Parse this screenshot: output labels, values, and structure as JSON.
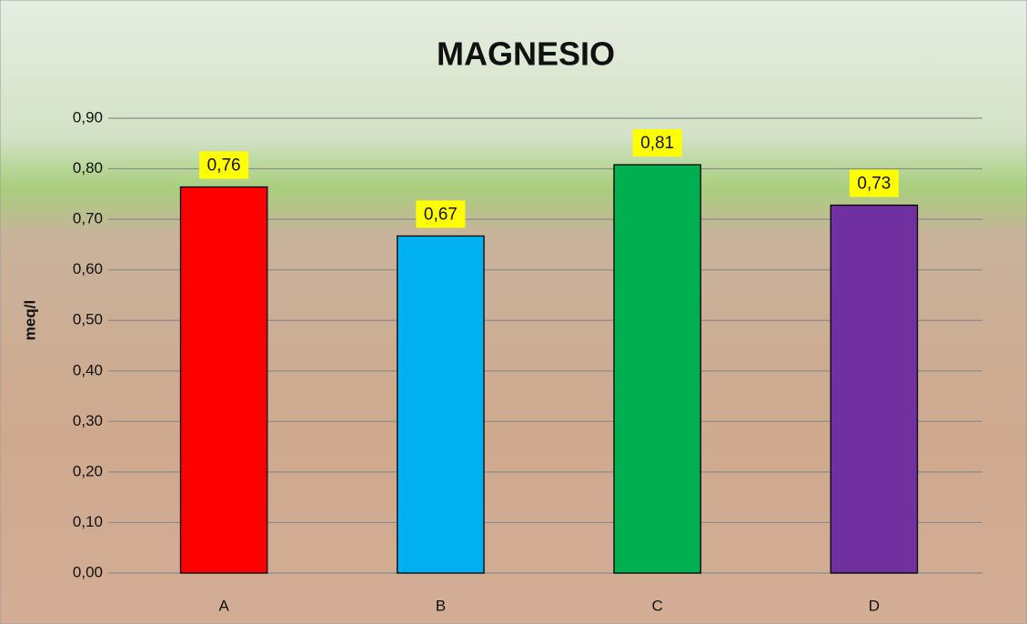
{
  "chart_data": {
    "type": "bar",
    "title": "MAGNESIO",
    "y_label": "meq/l",
    "categories": [
      "A",
      "B",
      "C",
      "D"
    ],
    "values": [
      0.764,
      0.667,
      0.808,
      0.728
    ],
    "value_labels": [
      "0,76",
      "0,67",
      "0,81",
      "0,73"
    ],
    "colors": [
      "#ff0000",
      "#00b0f0",
      "#00b050",
      "#7030a0"
    ],
    "ylim": [
      0,
      0.9
    ],
    "yticks": [
      {
        "value": 0,
        "label": "0,00"
      },
      {
        "value": 0.1,
        "label": "0,10"
      },
      {
        "value": 0.2,
        "label": "0,20"
      },
      {
        "value": 0.3,
        "label": "0,30"
      },
      {
        "value": 0.4,
        "label": "0,40"
      },
      {
        "value": 0.5,
        "label": "0,50"
      },
      {
        "value": 0.6,
        "label": "0,60"
      },
      {
        "value": 0.7,
        "label": "0,70"
      },
      {
        "value": 0.8,
        "label": "0,80"
      },
      {
        "value": 0.9,
        "label": "0,90"
      }
    ],
    "grid": true
  }
}
